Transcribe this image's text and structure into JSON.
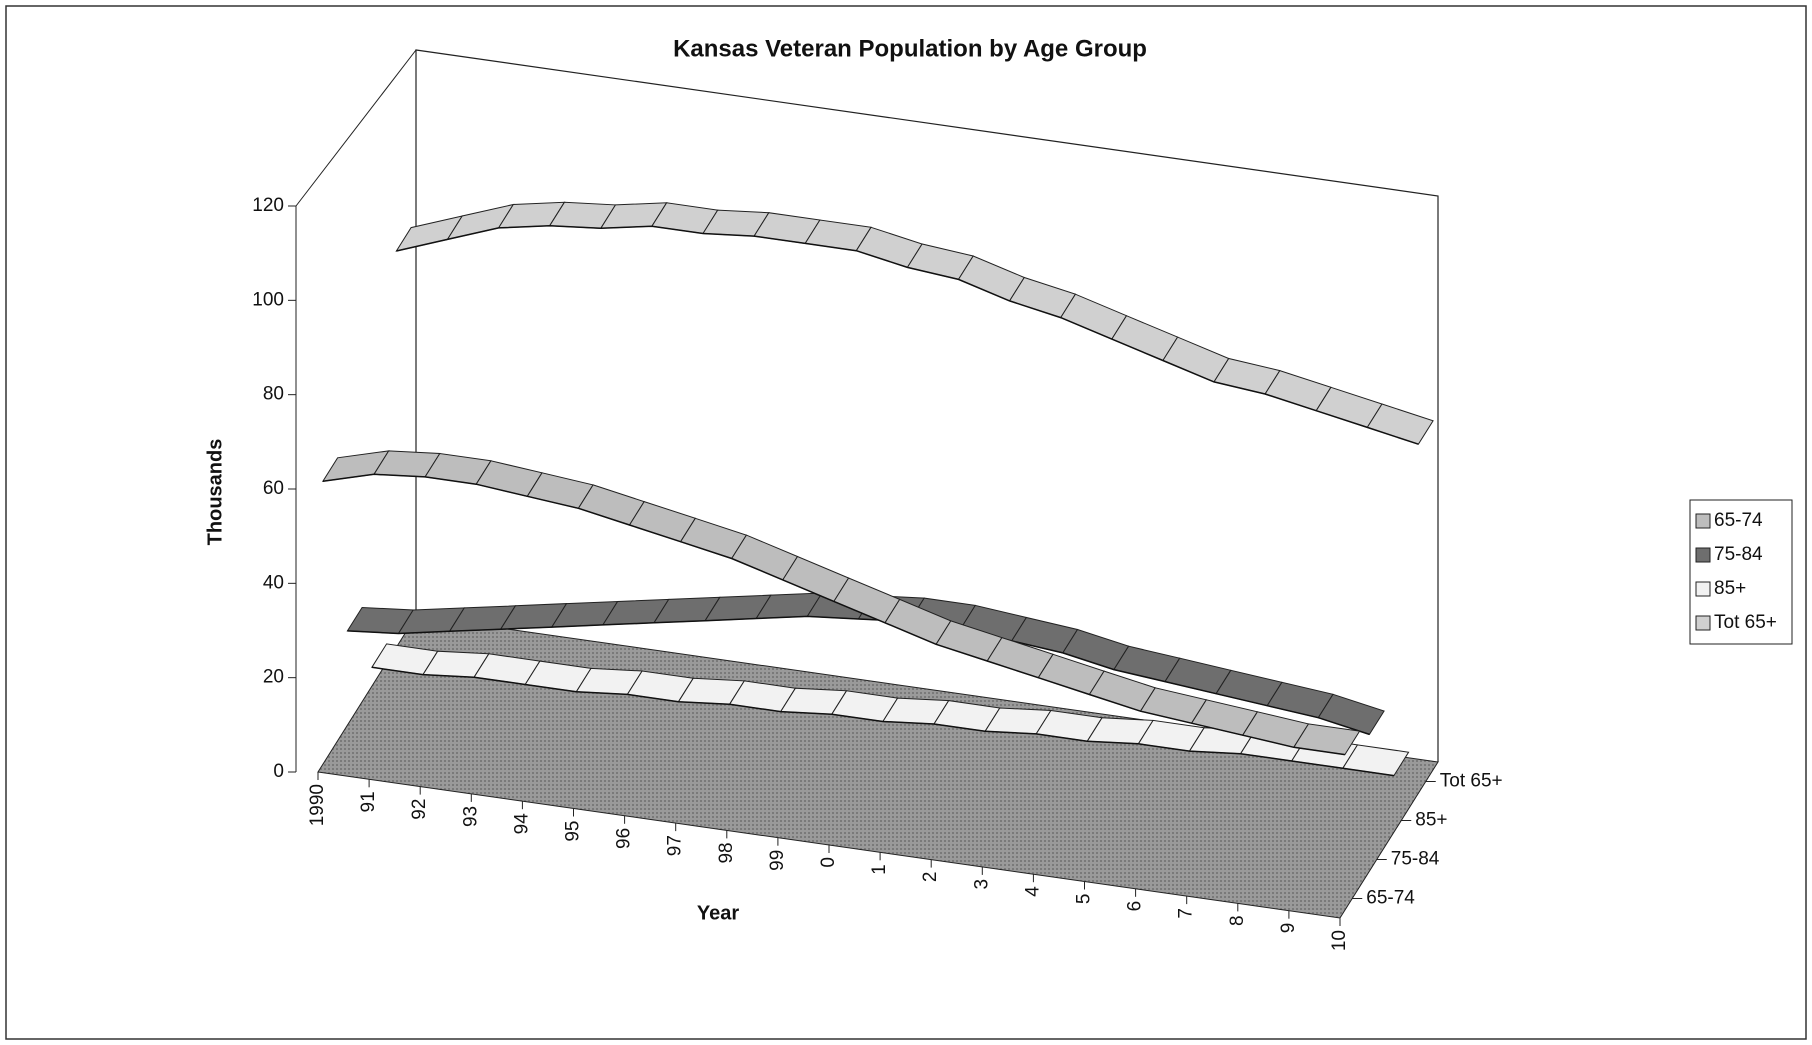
{
  "chart_data": {
    "type": "line",
    "title": "Kansas Veteran Population by Age Group",
    "xlabel": "Year",
    "ylabel": "Thousands",
    "categories": [
      "1990",
      "91",
      "92",
      "93",
      "94",
      "95",
      "96",
      "97",
      "98",
      "99",
      "0",
      "1",
      "2",
      "3",
      "4",
      "5",
      "6",
      "7",
      "8",
      "9",
      "10"
    ],
    "ylim": [
      0,
      120
    ],
    "yticks": [
      0,
      20,
      40,
      60,
      80,
      100,
      120
    ],
    "legend": "right",
    "series": [
      {
        "name": "65-74",
        "color": "#bdbdbd",
        "values": [
          60,
          63,
          64,
          64,
          63,
          62,
          60,
          58,
          56,
          53,
          50,
          47,
          44,
          42,
          40,
          38,
          36,
          35,
          34,
          33,
          33
        ]
      },
      {
        "name": "75-84",
        "color": "#6e6e6e",
        "values": [
          20,
          21,
          23,
          25,
          27,
          29,
          31,
          33,
          35,
          37,
          38,
          39,
          39,
          38,
          37,
          35,
          34,
          33,
          32,
          31,
          29
        ]
      },
      {
        "name": "85+",
        "color": "#f2f2f2",
        "values": [
          4,
          4,
          5,
          5,
          5,
          6,
          6,
          7,
          7,
          8,
          8,
          9,
          9,
          10,
          10,
          11,
          11,
          12,
          12,
          12,
          12
        ]
      },
      {
        "name": "Tot 65+",
        "color": "#d0d0d0",
        "values": [
          84,
          88,
          92,
          94,
          95,
          97,
          97,
          98,
          98,
          98,
          96,
          95,
          92,
          90,
          87,
          84,
          81,
          80,
          78,
          76,
          74
        ]
      }
    ]
  }
}
